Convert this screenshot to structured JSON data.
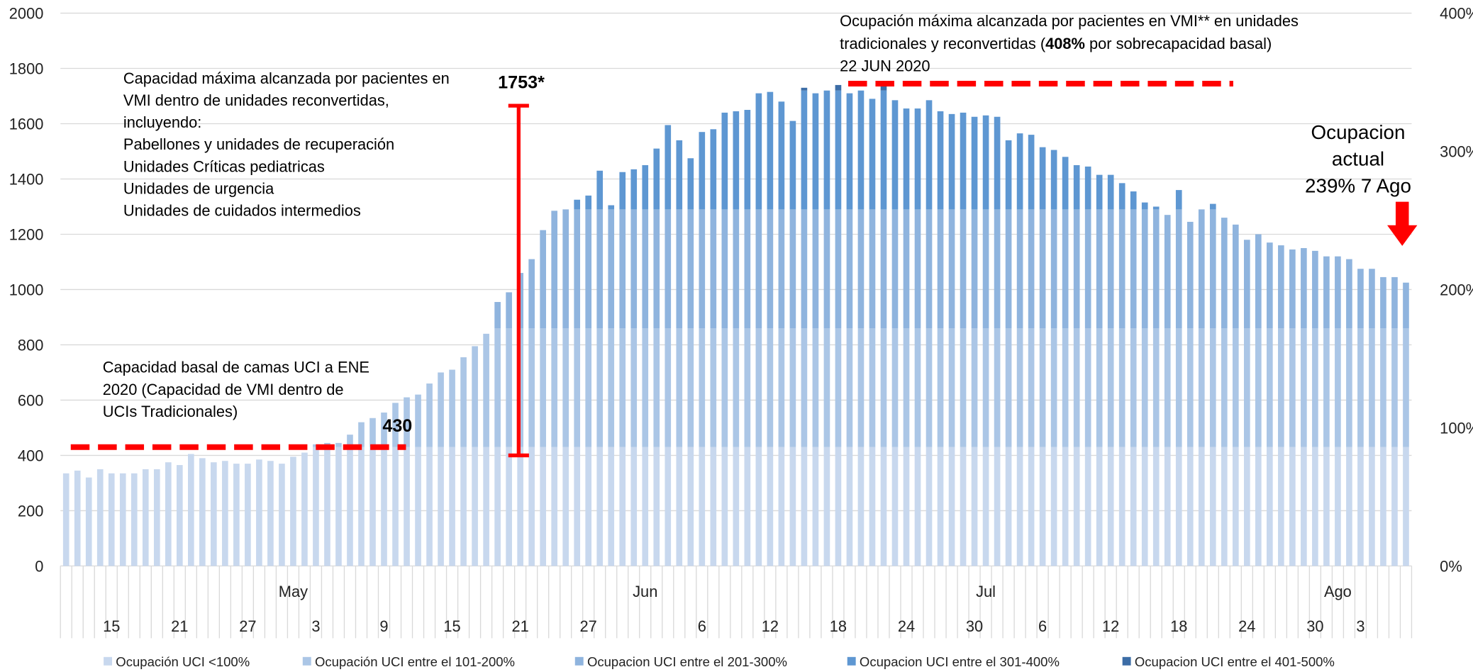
{
  "chart_data": {
    "type": "stacked_bar",
    "series": [
      {
        "name": "Ocupación UCI <100%",
        "color": "#c8d8ee",
        "values": [
          335,
          345,
          320,
          350,
          335,
          335,
          335,
          350,
          350,
          375,
          365,
          405,
          390,
          375,
          380,
          370,
          370,
          385,
          380,
          370,
          395,
          410,
          430,
          430,
          430,
          430,
          430,
          430,
          430,
          430,
          430,
          430,
          430,
          430,
          430,
          430,
          430,
          430,
          430,
          430,
          430,
          430,
          430,
          430,
          430,
          430,
          430,
          430,
          430,
          430,
          430,
          430,
          430,
          430,
          430,
          430,
          430,
          430,
          430,
          430,
          430,
          430,
          430,
          430,
          430,
          430,
          430,
          430,
          430,
          430,
          430,
          430,
          430,
          430,
          430,
          430,
          430,
          430,
          430,
          430,
          430,
          430,
          430,
          430,
          430,
          430,
          430,
          430,
          430,
          430,
          430,
          430,
          430,
          430,
          430,
          430,
          430,
          430,
          430,
          430,
          430,
          430,
          430,
          430,
          430,
          430,
          430,
          430,
          430,
          430,
          430,
          430,
          430,
          430,
          430,
          430,
          430,
          430,
          430
        ]
      },
      {
        "name": "Ocupación UCI entre el 101-200%",
        "color": "#abc6e6",
        "values": [
          0,
          0,
          0,
          0,
          0,
          0,
          0,
          0,
          0,
          0,
          0,
          0,
          0,
          0,
          0,
          0,
          0,
          0,
          0,
          0,
          0,
          0,
          10,
          15,
          15,
          45,
          90,
          105,
          125,
          160,
          180,
          190,
          230,
          270,
          280,
          325,
          365,
          410,
          430,
          430,
          430,
          430,
          430,
          430,
          430,
          430,
          430,
          430,
          430,
          430,
          430,
          430,
          430,
          430,
          430,
          430,
          430,
          430,
          430,
          430,
          430,
          430,
          430,
          430,
          430,
          430,
          430,
          430,
          430,
          430,
          430,
          430,
          430,
          430,
          430,
          430,
          430,
          430,
          430,
          430,
          430,
          430,
          430,
          430,
          430,
          430,
          430,
          430,
          430,
          430,
          430,
          430,
          430,
          430,
          430,
          430,
          430,
          430,
          430,
          430,
          430,
          430,
          430,
          430,
          430,
          430,
          430,
          430,
          430,
          430,
          430,
          430,
          430,
          430,
          430,
          430,
          430,
          430,
          430
        ]
      },
      {
        "name": "Ocupacion UCI entre el 201-300%",
        "color": "#8fb4de",
        "values": [
          0,
          0,
          0,
          0,
          0,
          0,
          0,
          0,
          0,
          0,
          0,
          0,
          0,
          0,
          0,
          0,
          0,
          0,
          0,
          0,
          0,
          0,
          0,
          0,
          0,
          0,
          0,
          0,
          0,
          0,
          0,
          0,
          0,
          0,
          0,
          0,
          0,
          0,
          95,
          130,
          200,
          250,
          355,
          425,
          430,
          430,
          430,
          430,
          430,
          430,
          430,
          430,
          430,
          430,
          430,
          430,
          430,
          430,
          430,
          430,
          430,
          430,
          430,
          430,
          430,
          430,
          430,
          430,
          430,
          430,
          430,
          430,
          430,
          430,
          430,
          430,
          430,
          430,
          430,
          430,
          430,
          430,
          430,
          430,
          430,
          430,
          430,
          430,
          430,
          430,
          430,
          430,
          430,
          430,
          430,
          430,
          430,
          410,
          430,
          385,
          430,
          430,
          400,
          375,
          320,
          340,
          310,
          300,
          285,
          290,
          280,
          260,
          260,
          250,
          215,
          215,
          185,
          185,
          165
        ]
      },
      {
        "name": "Ocupacion UCI entre el 301-400%",
        "color": "#5e97d2",
        "values": [
          0,
          0,
          0,
          0,
          0,
          0,
          0,
          0,
          0,
          0,
          0,
          0,
          0,
          0,
          0,
          0,
          0,
          0,
          0,
          0,
          0,
          0,
          0,
          0,
          0,
          0,
          0,
          0,
          0,
          0,
          0,
          0,
          0,
          0,
          0,
          0,
          0,
          0,
          0,
          0,
          0,
          0,
          0,
          0,
          0,
          35,
          50,
          140,
          15,
          135,
          145,
          160,
          220,
          305,
          250,
          185,
          280,
          290,
          350,
          355,
          360,
          420,
          425,
          390,
          320,
          430,
          420,
          430,
          430,
          420,
          430,
          400,
          430,
          395,
          365,
          365,
          395,
          355,
          345,
          350,
          335,
          340,
          335,
          250,
          275,
          270,
          225,
          215,
          190,
          160,
          155,
          125,
          125,
          95,
          65,
          25,
          10,
          0,
          70,
          0,
          0,
          20,
          0,
          0,
          0,
          0,
          0,
          0,
          0,
          0,
          0,
          0,
          0,
          0,
          0,
          0,
          0,
          0,
          0
        ]
      },
      {
        "name": "Ocupacion UCI entre el 401-500%",
        "color": "#3c6da6",
        "values": [
          0,
          0,
          0,
          0,
          0,
          0,
          0,
          0,
          0,
          0,
          0,
          0,
          0,
          0,
          0,
          0,
          0,
          0,
          0,
          0,
          0,
          0,
          0,
          0,
          0,
          0,
          0,
          0,
          0,
          0,
          0,
          0,
          0,
          0,
          0,
          0,
          0,
          0,
          0,
          0,
          0,
          0,
          0,
          0,
          0,
          0,
          0,
          0,
          0,
          0,
          0,
          0,
          0,
          0,
          0,
          0,
          0,
          0,
          0,
          0,
          0,
          0,
          0,
          0,
          0,
          10,
          0,
          0,
          20,
          0,
          0,
          0,
          20,
          0,
          0,
          0,
          0,
          0,
          0,
          0,
          0,
          0,
          0,
          0,
          0,
          0,
          0,
          0,
          0,
          0,
          0,
          0,
          0,
          0,
          0,
          0,
          0,
          0,
          0,
          0,
          0,
          0,
          0,
          0,
          0,
          0,
          0,
          0,
          0,
          0,
          0,
          0,
          0,
          0,
          0,
          0,
          0,
          0,
          0
        ]
      }
    ],
    "categories": [
      null,
      null,
      null,
      null,
      "15",
      null,
      null,
      null,
      null,
      null,
      "21",
      null,
      null,
      null,
      null,
      null,
      "27",
      null,
      null,
      null,
      null,
      null,
      "3",
      null,
      null,
      null,
      null,
      null,
      "9",
      null,
      null,
      null,
      null,
      null,
      "15",
      null,
      null,
      null,
      null,
      null,
      "21",
      null,
      null,
      null,
      null,
      null,
      "27",
      null,
      null,
      null,
      null,
      null,
      null,
      null,
      null,
      null,
      "6",
      null,
      null,
      null,
      null,
      null,
      "12",
      null,
      null,
      null,
      null,
      null,
      "18",
      null,
      null,
      null,
      null,
      null,
      "24",
      null,
      null,
      null,
      null,
      null,
      "30",
      null,
      null,
      null,
      null,
      null,
      "6",
      null,
      null,
      null,
      null,
      null,
      "12",
      null,
      null,
      null,
      null,
      null,
      "18",
      null,
      null,
      null,
      null,
      null,
      "24",
      null,
      null,
      null,
      null,
      null,
      "30",
      null,
      null,
      null,
      "3",
      null,
      null,
      null,
      null
    ],
    "months": [
      null,
      null,
      null,
      null,
      null,
      null,
      null,
      null,
      null,
      null,
      null,
      null,
      null,
      null,
      null,
      null,
      null,
      null,
      null,
      null,
      "May",
      null,
      null,
      null,
      null,
      null,
      null,
      null,
      null,
      null,
      null,
      null,
      null,
      null,
      null,
      null,
      null,
      null,
      null,
      null,
      null,
      null,
      null,
      null,
      null,
      null,
      null,
      null,
      null,
      null,
      null,
      "Jun",
      null,
      null,
      null,
      null,
      null,
      null,
      null,
      null,
      null,
      null,
      null,
      null,
      null,
      null,
      null,
      null,
      null,
      null,
      null,
      null,
      null,
      null,
      null,
      null,
      null,
      null,
      null,
      null,
      null,
      "Jul",
      null,
      null,
      null,
      null,
      null,
      null,
      null,
      null,
      null,
      null,
      null,
      null,
      null,
      null,
      null,
      null,
      null,
      null,
      null,
      null,
      null,
      null,
      null,
      null,
      null,
      null,
      null,
      null,
      null,
      null,
      "Ago",
      null,
      null,
      null,
      null,
      null,
      null
    ],
    "ylim": [
      0,
      2000
    ],
    "yticks": [
      0,
      200,
      400,
      600,
      800,
      1000,
      1200,
      1400,
      1600,
      1800,
      2000
    ],
    "y2lim": [
      0,
      400
    ],
    "y2ticks": [
      {
        "value": 0,
        "label": "0%"
      },
      {
        "value": 100,
        "label": "100%"
      },
      {
        "value": 200,
        "label": "200%"
      },
      {
        "value": 300,
        "label": "300%"
      },
      {
        "value": 400,
        "label": "400%"
      }
    ],
    "grid": true,
    "legend": "bottom",
    "annotations": {
      "reconverted_text": [
        "Capacidad máxima alcanzada por pacientes en",
        "VMI dentro de unidades reconvertidas,",
        "incluyendo:",
        "Pabellones y unidades de recuperación",
        "Unidades Críticas pediatricas",
        "Unidades de urgencia",
        "Unidades de cuidados intermedios"
      ],
      "basal_text": [
        "Capacidad basal de camas UCI a ENE",
        "2020 (Capacidad de VMI dentro de",
        "UCIs Tradicionales)"
      ],
      "basal_label": "430",
      "basal_line": 430,
      "max_label": "1753*",
      "bracket": [
        400,
        1665
      ],
      "max_text": [
        "Ocupación máxima alcanzada por pacientes en VMI** en unidades",
        "tradicionales y reconvertidas (",
        "408%",
        " por sobrecapacidad basal)",
        "22 JUN 2020"
      ],
      "max_line": 1745,
      "current_text": [
        "Ocupacion",
        "actual",
        "239% 7 Ago"
      ],
      "line_color": "#ff0000"
    }
  }
}
